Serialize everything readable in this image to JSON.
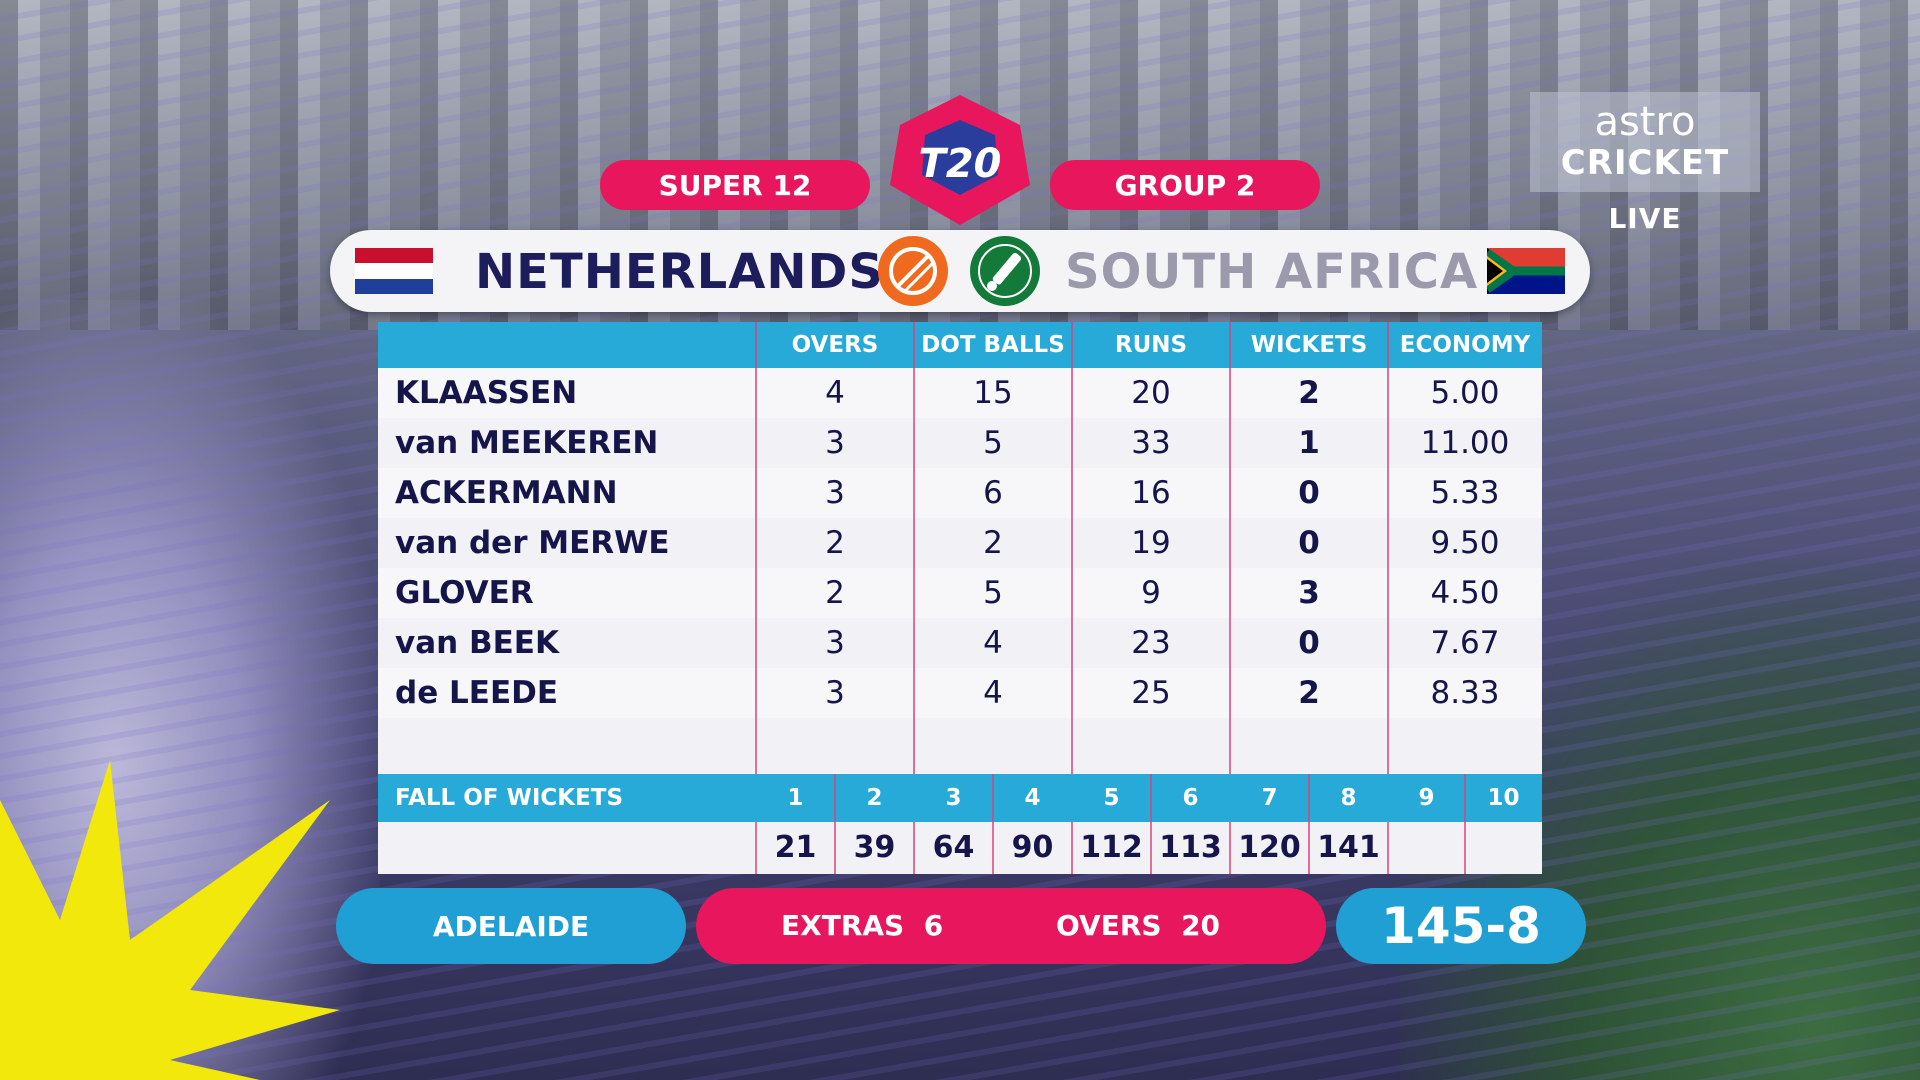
{
  "broadcaster": {
    "brand": "astro",
    "channel": "CRICKET",
    "live": "LIVE"
  },
  "event": {
    "logo": "T20",
    "stage": "SUPER 12",
    "group": "GROUP 2"
  },
  "teams": {
    "batting": "NETHERLANDS",
    "bowling": "SOUTH AFRICA"
  },
  "table": {
    "headers": {
      "overs": "OVERS",
      "dots": "DOT BALLS",
      "runs": "RUNS",
      "wickets": "WICKETS",
      "economy": "ECONOMY"
    },
    "rows": [
      {
        "name": "KLAASSEN",
        "overs": "4",
        "dots": "15",
        "runs": "20",
        "wickets": "2",
        "economy": "5.00"
      },
      {
        "name": "van MEEKEREN",
        "overs": "3",
        "dots": "5",
        "runs": "33",
        "wickets": "1",
        "economy": "11.00"
      },
      {
        "name": "ACKERMANN",
        "overs": "3",
        "dots": "6",
        "runs": "16",
        "wickets": "0",
        "economy": "5.33"
      },
      {
        "name": "van der MERWE",
        "overs": "2",
        "dots": "2",
        "runs": "19",
        "wickets": "0",
        "economy": "9.50"
      },
      {
        "name": "GLOVER",
        "overs": "2",
        "dots": "5",
        "runs": "9",
        "wickets": "3",
        "economy": "4.50"
      },
      {
        "name": "van BEEK",
        "overs": "3",
        "dots": "4",
        "runs": "23",
        "wickets": "0",
        "economy": "7.67"
      },
      {
        "name": "de LEEDE",
        "overs": "3",
        "dots": "4",
        "runs": "25",
        "wickets": "2",
        "economy": "8.33"
      }
    ]
  },
  "fall_of_wickets": {
    "label": "FALL OF WICKETS",
    "numbers": [
      "1",
      "2",
      "3",
      "4",
      "5",
      "6",
      "7",
      "8",
      "9",
      "10"
    ],
    "scores": [
      "21",
      "39",
      "64",
      "90",
      "112",
      "113",
      "120",
      "141",
      "",
      ""
    ]
  },
  "footer": {
    "venue": "ADELAIDE",
    "extras_label": "EXTRAS",
    "extras_value": "6",
    "overs_label": "OVERS",
    "overs_value": "20",
    "score": "145-8"
  }
}
